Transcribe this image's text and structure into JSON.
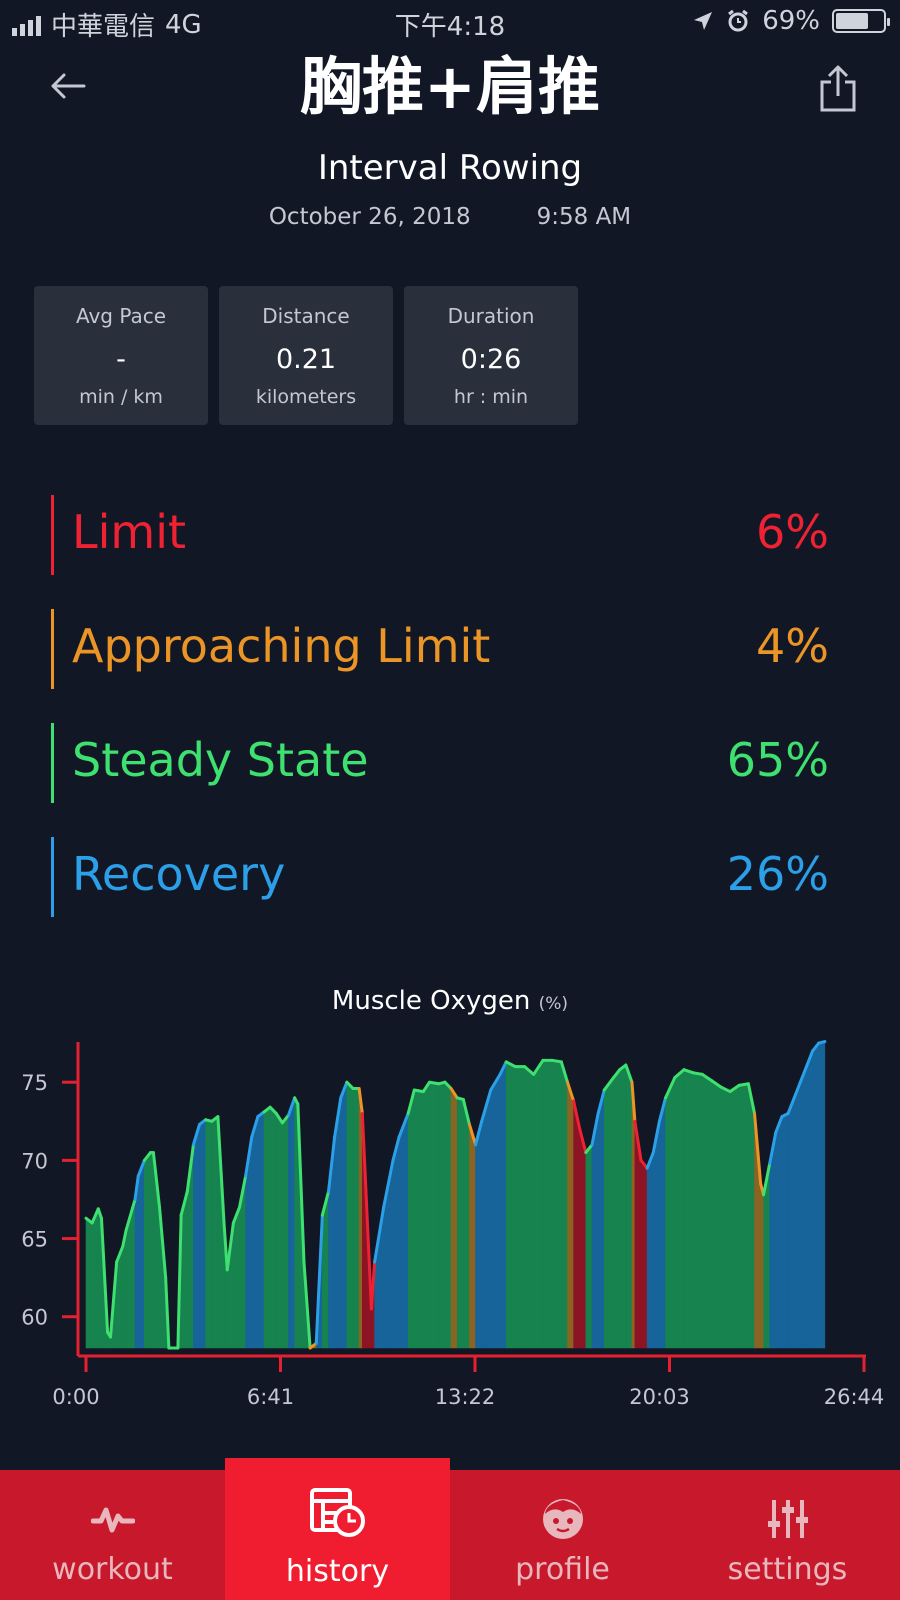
{
  "status_bar": {
    "carrier": "中華電信",
    "network": "4G",
    "time": "下午4:18",
    "battery": "69%",
    "battery_level": 0.69
  },
  "header": {
    "title": "胸推+肩推"
  },
  "workout": {
    "type": "Interval Rowing",
    "date": "October 26, 2018",
    "time": "9:58 AM"
  },
  "stats": [
    {
      "label": "Avg Pace",
      "value": "-",
      "unit": "min / km"
    },
    {
      "label": "Distance",
      "value": "0.21",
      "unit": "kilometers"
    },
    {
      "label": "Duration",
      "value": "0:26",
      "unit": "hr : min"
    }
  ],
  "zones": [
    {
      "name": "Limit",
      "percent": "6%",
      "color": "#ee2233"
    },
    {
      "name": "Approaching Limit",
      "percent": "4%",
      "color": "#eb9526"
    },
    {
      "name": "Steady State",
      "percent": "65%",
      "color": "#3ee06f"
    },
    {
      "name": "Recovery",
      "percent": "26%",
      "color": "#2ba0e8"
    }
  ],
  "chart": {
    "title": "Muscle Oxygen",
    "unit": "(%)"
  },
  "chart_data": {
    "type": "area",
    "title": "Muscle Oxygen",
    "ylabel": "(%)",
    "y_ticks": [
      60,
      65,
      70,
      75
    ],
    "x_ticks": [
      "0:00",
      "6:41",
      "13:22",
      "20:03",
      "26:44"
    ],
    "xlim": [
      0,
      26.73
    ],
    "ylim": [
      58,
      77.7
    ],
    "x_unit": "minutes",
    "zone_colors": {
      "limit": "#ee2233",
      "approaching": "#eb9526",
      "steady": "#3ee06f",
      "recovery": "#2ba0e8"
    },
    "points": [
      [
        0.0,
        66.3,
        "steady"
      ],
      [
        0.21,
        66.0,
        "steady"
      ],
      [
        0.42,
        66.9,
        "steady"
      ],
      [
        0.53,
        66.3,
        "steady"
      ],
      [
        0.74,
        59.0,
        "steady"
      ],
      [
        0.84,
        58.7,
        "steady"
      ],
      [
        1.05,
        63.5,
        "steady"
      ],
      [
        1.26,
        64.5,
        "steady"
      ],
      [
        1.37,
        65.5,
        "steady"
      ],
      [
        1.68,
        67.5,
        "steady"
      ],
      [
        1.79,
        69.0,
        "recovery"
      ],
      [
        2.0,
        70.0,
        "recovery"
      ],
      [
        2.21,
        70.5,
        "steady"
      ],
      [
        2.31,
        70.5,
        "steady"
      ],
      [
        2.52,
        67.0,
        "steady"
      ],
      [
        2.73,
        62.5,
        "steady"
      ],
      [
        2.84,
        58.0,
        "steady"
      ],
      [
        3.15,
        58.0,
        "steady"
      ],
      [
        3.26,
        66.5,
        "steady"
      ],
      [
        3.47,
        68.0,
        "steady"
      ],
      [
        3.68,
        71.0,
        "steady"
      ],
      [
        3.89,
        72.3,
        "recovery"
      ],
      [
        4.1,
        72.6,
        "recovery"
      ],
      [
        4.31,
        72.5,
        "steady"
      ],
      [
        4.52,
        72.8,
        "steady"
      ],
      [
        4.73,
        66.0,
        "steady"
      ],
      [
        4.84,
        63.0,
        "steady"
      ],
      [
        5.05,
        66.0,
        "steady"
      ],
      [
        5.26,
        67.0,
        "steady"
      ],
      [
        5.47,
        69.0,
        "steady"
      ],
      [
        5.68,
        71.5,
        "recovery"
      ],
      [
        5.89,
        72.8,
        "recovery"
      ],
      [
        6.1,
        73.1,
        "recovery"
      ],
      [
        6.31,
        73.4,
        "steady"
      ],
      [
        6.52,
        73.0,
        "steady"
      ],
      [
        6.73,
        72.4,
        "steady"
      ],
      [
        6.94,
        72.9,
        "steady"
      ],
      [
        7.15,
        74.0,
        "recovery"
      ],
      [
        7.26,
        73.6,
        "steady"
      ],
      [
        7.47,
        63.5,
        "steady"
      ],
      [
        7.68,
        58.0,
        "steady"
      ],
      [
        7.89,
        58.3,
        "approaching"
      ],
      [
        8.1,
        66.5,
        "recovery"
      ],
      [
        8.31,
        68.0,
        "steady"
      ],
      [
        8.52,
        71.5,
        "recovery"
      ],
      [
        8.73,
        74.0,
        "recovery"
      ],
      [
        8.94,
        75.0,
        "recovery"
      ],
      [
        9.15,
        74.6,
        "steady"
      ],
      [
        9.36,
        74.6,
        "steady"
      ],
      [
        9.47,
        73.0,
        "approaching"
      ],
      [
        9.57,
        69.0,
        "limit"
      ],
      [
        9.78,
        60.5,
        "limit"
      ],
      [
        9.89,
        63.5,
        "limit"
      ],
      [
        10.2,
        67.0,
        "recovery"
      ],
      [
        10.52,
        70.0,
        "recovery"
      ],
      [
        10.73,
        71.5,
        "recovery"
      ],
      [
        11.04,
        73.0,
        "recovery"
      ],
      [
        11.25,
        74.5,
        "steady"
      ],
      [
        11.56,
        74.4,
        "steady"
      ],
      [
        11.77,
        75.0,
        "steady"
      ],
      [
        12.09,
        74.9,
        "steady"
      ],
      [
        12.3,
        75.0,
        "steady"
      ],
      [
        12.51,
        74.6,
        "steady"
      ],
      [
        12.72,
        74.0,
        "approaching"
      ],
      [
        12.93,
        73.9,
        "steady"
      ],
      [
        13.14,
        72.3,
        "steady"
      ],
      [
        13.35,
        71.0,
        "approaching"
      ],
      [
        13.56,
        72.5,
        "recovery"
      ],
      [
        13.87,
        74.5,
        "recovery"
      ],
      [
        14.19,
        75.5,
        "recovery"
      ],
      [
        14.4,
        76.3,
        "recovery"
      ],
      [
        14.71,
        76.0,
        "steady"
      ],
      [
        15.03,
        76.0,
        "steady"
      ],
      [
        15.34,
        75.5,
        "steady"
      ],
      [
        15.66,
        76.4,
        "steady"
      ],
      [
        15.97,
        76.4,
        "steady"
      ],
      [
        16.29,
        76.3,
        "steady"
      ],
      [
        16.5,
        75.0,
        "steady"
      ],
      [
        16.71,
        73.8,
        "approaching"
      ],
      [
        16.92,
        72.0,
        "limit"
      ],
      [
        17.13,
        70.5,
        "limit"
      ],
      [
        17.34,
        71.0,
        "steady"
      ],
      [
        17.55,
        73.0,
        "recovery"
      ],
      [
        17.76,
        74.5,
        "recovery"
      ],
      [
        18.08,
        75.3,
        "steady"
      ],
      [
        18.29,
        75.8,
        "steady"
      ],
      [
        18.5,
        76.1,
        "steady"
      ],
      [
        18.71,
        75.0,
        "steady"
      ],
      [
        18.81,
        72.5,
        "approaching"
      ],
      [
        19.02,
        70.0,
        "limit"
      ],
      [
        19.23,
        69.5,
        "limit"
      ],
      [
        19.44,
        70.5,
        "recovery"
      ],
      [
        19.65,
        72.5,
        "recovery"
      ],
      [
        19.86,
        74.0,
        "recovery"
      ],
      [
        20.18,
        75.3,
        "steady"
      ],
      [
        20.49,
        75.8,
        "steady"
      ],
      [
        20.81,
        75.6,
        "steady"
      ],
      [
        21.12,
        75.5,
        "steady"
      ],
      [
        21.44,
        75.1,
        "steady"
      ],
      [
        21.75,
        74.7,
        "steady"
      ],
      [
        22.07,
        74.4,
        "steady"
      ],
      [
        22.38,
        74.8,
        "steady"
      ],
      [
        22.7,
        74.9,
        "steady"
      ],
      [
        22.91,
        73.0,
        "steady"
      ],
      [
        23.12,
        68.5,
        "approaching"
      ],
      [
        23.22,
        67.8,
        "approaching"
      ],
      [
        23.43,
        69.8,
        "steady"
      ],
      [
        23.64,
        71.8,
        "recovery"
      ],
      [
        23.85,
        72.8,
        "recovery"
      ],
      [
        24.06,
        73.0,
        "recovery"
      ],
      [
        24.27,
        74.0,
        "recovery"
      ],
      [
        24.48,
        75.0,
        "recovery"
      ],
      [
        24.69,
        76.0,
        "recovery"
      ],
      [
        24.9,
        77.0,
        "recovery"
      ],
      [
        25.11,
        77.5,
        "recovery"
      ],
      [
        25.32,
        77.6,
        "recovery"
      ]
    ]
  },
  "nav": [
    {
      "label": "workout",
      "icon": "pulse-icon",
      "active": false
    },
    {
      "label": "history",
      "icon": "history-icon",
      "active": true
    },
    {
      "label": "profile",
      "icon": "face-icon",
      "active": false
    },
    {
      "label": "settings",
      "icon": "sliders-icon",
      "active": false
    }
  ]
}
